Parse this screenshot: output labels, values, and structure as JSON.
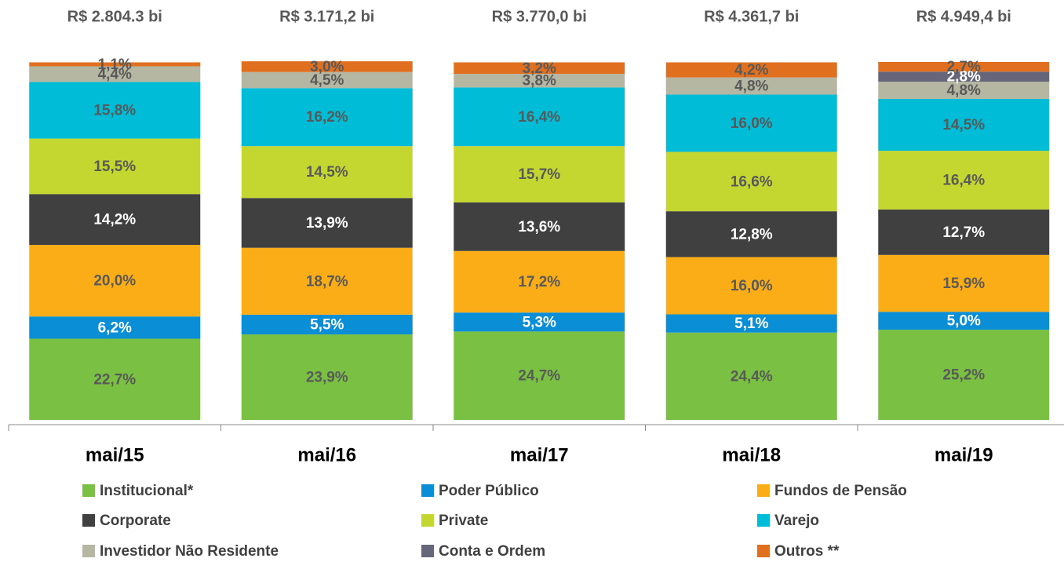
{
  "chart_data": {
    "type": "stacked_bar",
    "categories": [
      "mai/15",
      "mai/16",
      "mai/17",
      "mai/18",
      "mai/19"
    ],
    "totals": [
      "R$ 2.804.3 bi",
      "R$ 3.171,2 bi",
      "R$ 3.770,0 bi",
      "R$ 4.361,7 bi",
      "R$ 4.949,4 bi"
    ],
    "ylim": [
      0,
      100
    ],
    "series": [
      {
        "name": "Institucional*",
        "color": "#7ac143",
        "values": [
          22.7,
          23.9,
          24.7,
          24.4,
          25.2
        ],
        "value_labels": [
          "22,7%",
          "23,9%",
          "24,7%",
          "24,4%",
          "25,2%"
        ]
      },
      {
        "name": "Poder Público",
        "color": "#0a8fd6",
        "values": [
          6.2,
          5.5,
          5.3,
          5.1,
          5.0
        ],
        "value_labels": [
          "6,2%",
          "5,5%",
          "5,3%",
          "5,1%",
          "5,0%"
        ]
      },
      {
        "name": "Fundos de Pensão",
        "color": "#fbad18",
        "values": [
          20.0,
          18.7,
          17.2,
          16.0,
          15.9
        ],
        "value_labels": [
          "20,0%",
          "18,7%",
          "17,2%",
          "16,0%",
          "15,9%"
        ]
      },
      {
        "name": "Corporate",
        "color": "#404041",
        "values": [
          14.2,
          13.9,
          13.6,
          12.8,
          12.7
        ],
        "value_labels": [
          "14,2%",
          "13,9%",
          "13,6%",
          "12,8%",
          "12,7%"
        ]
      },
      {
        "name": "Private",
        "color": "#c4d730",
        "values": [
          15.5,
          14.5,
          15.7,
          16.6,
          16.4
        ],
        "value_labels": [
          "15,5%",
          "14,5%",
          "15,7%",
          "16,6%",
          "16,4%"
        ]
      },
      {
        "name": "Varejo",
        "color": "#00bcd6",
        "values": [
          15.8,
          16.2,
          16.4,
          16.0,
          14.5
        ],
        "value_labels": [
          "15,8%",
          "16,2%",
          "16,4%",
          "16,0%",
          "14,5%"
        ]
      },
      {
        "name": "Investidor Não Residente",
        "color": "#b6b7a2",
        "values": [
          4.4,
          4.5,
          3.8,
          4.8,
          4.8
        ],
        "value_labels": [
          "4,4%",
          "4,5%",
          "3,8%",
          "4,8%",
          "4,8%"
        ]
      },
      {
        "name": "Conta e Ordem",
        "color": "#65667a",
        "values": [
          null,
          null,
          null,
          null,
          2.8
        ],
        "value_labels": [
          null,
          null,
          null,
          null,
          "2,8%"
        ]
      },
      {
        "name": "Outros **",
        "color": "#e07020",
        "values": [
          1.1,
          3.0,
          3.2,
          4.2,
          2.7
        ],
        "value_labels": [
          "1,1%",
          "3,0%",
          "3,2%",
          "4,2%",
          "2,7%"
        ]
      }
    ]
  }
}
